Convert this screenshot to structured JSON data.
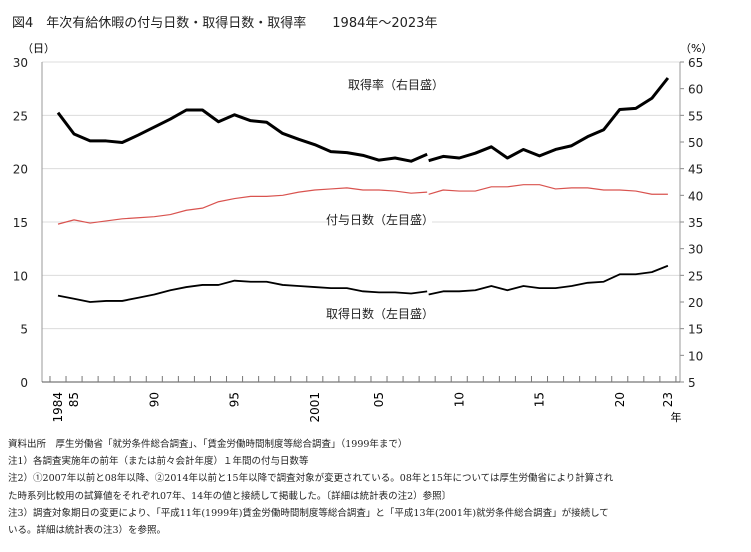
{
  "chart_data": {
    "type": "line",
    "title": "図4　年次有給休暇の付与日数・取得日数・取得率　　1984年〜2023年",
    "y_left_label": "（日）",
    "y_right_label": "（%）",
    "x_unit_label": "年",
    "ylim_left": [
      0,
      30
    ],
    "ylim_right": [
      5,
      65
    ],
    "y_left_ticks": [
      "0",
      "5",
      "10",
      "15",
      "20",
      "25",
      "30"
    ],
    "y_right_ticks": [
      "5",
      "10",
      "15",
      "20",
      "25",
      "30",
      "35",
      "40",
      "45",
      "50",
      "55",
      "60",
      "65"
    ],
    "grid": true,
    "categories": [
      "1984",
      "1985",
      "1986",
      "1987",
      "1988",
      "1989",
      "1990",
      "1991",
      "1992",
      "1993",
      "1994",
      "1995",
      "1996",
      "1997",
      "1998",
      "1999",
      "2001",
      "2002",
      "2003",
      "2004",
      "2005",
      "2006",
      "2007",
      "2008",
      "2009",
      "2010",
      "2011",
      "2012",
      "2013",
      "2014",
      "2015",
      "2016",
      "2017",
      "2018",
      "2019",
      "2020",
      "2021",
      "2022",
      "2023"
    ],
    "x_tick_labels": [
      {
        "category": "1984",
        "label": "1984"
      },
      {
        "category": "1985",
        "label": "85"
      },
      {
        "category": "1990",
        "label": "90"
      },
      {
        "category": "1995",
        "label": "95"
      },
      {
        "category": "2001",
        "label": "2001"
      },
      {
        "category": "2005",
        "label": "05"
      },
      {
        "category": "2010",
        "label": "10"
      },
      {
        "category": "2015",
        "label": "15"
      },
      {
        "category": "2020",
        "label": "20"
      },
      {
        "category": "2023",
        "label": "23"
      }
    ],
    "series": [
      {
        "name": "取得率（右目盛）",
        "axis": "right",
        "color": "#000000",
        "segments": [
          {
            "from": "1984",
            "values": [
              55.5,
              51.5,
              50.2,
              50.2,
              49.9,
              51.3,
              52.8,
              54.3,
              56.0,
              56.0,
              53.8,
              55.1,
              54.0,
              53.7,
              51.6,
              50.5,
              49.5,
              48.2,
              48.0,
              47.5,
              46.6,
              47.0,
              46.4,
              47.7
            ]
          },
          {
            "from": "2008",
            "values": [
              46.5,
              47.3,
              47.0,
              47.9,
              49.1,
              47.0,
              48.6,
              47.4,
              48.6,
              49.3,
              51.0,
              52.3,
              56.1,
              56.3,
              58.2,
              62.0
            ]
          }
        ]
      },
      {
        "name": "付与日数（左目盛）",
        "axis": "left",
        "color": "#d9534f",
        "segments": [
          {
            "from": "1984",
            "values": [
              14.8,
              15.2,
              14.9,
              15.1,
              15.3,
              15.4,
              15.5,
              15.7,
              16.1,
              16.3,
              16.9,
              17.2,
              17.4,
              17.4,
              17.5,
              17.8,
              18.0,
              18.1,
              18.2,
              18.0,
              18.0,
              17.9,
              17.7,
              17.8
            ]
          },
          {
            "from": "2008",
            "values": [
              17.6,
              18.0,
              17.9,
              17.9,
              18.3,
              18.3,
              18.5,
              18.5,
              18.1,
              18.2,
              18.2,
              18.0,
              18.0,
              17.9,
              17.6,
              17.6
            ]
          }
        ]
      },
      {
        "name": "取得日数（左目盛）",
        "axis": "left",
        "color": "#000000",
        "segments": [
          {
            "from": "1984",
            "values": [
              8.1,
              7.8,
              7.5,
              7.6,
              7.6,
              7.9,
              8.2,
              8.6,
              8.9,
              9.1,
              9.1,
              9.5,
              9.4,
              9.4,
              9.1,
              9.0,
              8.9,
              8.8,
              8.8,
              8.5,
              8.4,
              8.4,
              8.3,
              8.5
            ]
          },
          {
            "from": "2008",
            "values": [
              8.2,
              8.5,
              8.5,
              8.6,
              9.0,
              8.6,
              9.0,
              8.8,
              8.8,
              9.0,
              9.3,
              9.4,
              10.1,
              10.1,
              10.3,
              10.9
            ]
          }
        ]
      }
    ]
  },
  "notes": [
    "資料出所　厚生労働省「就労条件総合調査」、「賃金労働時間制度等総合調査」（1999年まで）",
    "注1）各調査実施年の前年（または前々会計年度）１年間の付与日数等",
    "注2）①2007年以前と08年以降、②2014年以前と15年以降で調査対象が変更されている。08年と15年については厚生労働省により計算され",
    "た時系列比較用の試算値をそれぞれ07年、14年の値と接続して掲載した。〔詳細は統計表の注2）参照〕",
    "注3）調査対象期日の変更により、「平成11年(1999年)賃金労働時間制度等総合調査」と「平成13年(2001年)就労条件総合調査」が接続して",
    "いる。詳細は統計表の注3）を参照。"
  ]
}
